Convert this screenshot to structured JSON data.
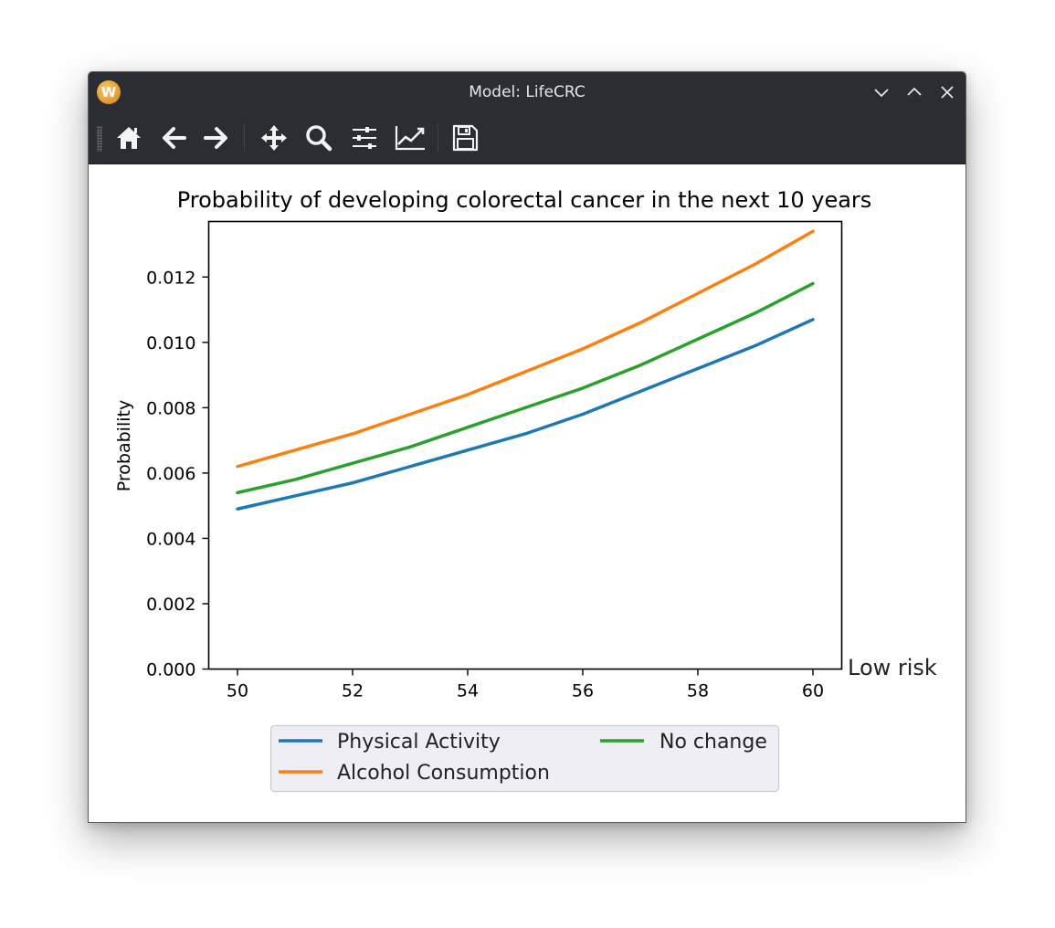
{
  "window": {
    "title": "Model: LifeCRC",
    "app_icon_letter": "W"
  },
  "toolbar": {
    "items": [
      {
        "name": "home-icon",
        "tooltip": "Home"
      },
      {
        "name": "back-arrow-icon",
        "tooltip": "Back"
      },
      {
        "name": "forward-arrow-icon",
        "tooltip": "Forward"
      },
      {
        "name": "pan-icon",
        "tooltip": "Pan"
      },
      {
        "name": "zoom-icon",
        "tooltip": "Zoom"
      },
      {
        "name": "subplots-icon",
        "tooltip": "Subplots"
      },
      {
        "name": "axes-edit-icon",
        "tooltip": "Customize"
      },
      {
        "name": "save-icon",
        "tooltip": "Save"
      }
    ]
  },
  "colors": {
    "titlebar": "#2a2e32",
    "icon": "#f2f3f4",
    "series_blue": "#1f77b4",
    "series_orange": "#ff7f0e",
    "series_green": "#2ca02c",
    "legend_bg": "#eeeef4"
  },
  "chart_data": {
    "type": "line",
    "title": "Probability of developing colorectal cancer in the next 10 years",
    "xlabel": "",
    "ylabel": "Probability",
    "side_label": "Low risk",
    "xlim": [
      49.5,
      60.5
    ],
    "ylim": [
      0.0,
      0.0137
    ],
    "xticks": [
      50,
      52,
      54,
      56,
      58,
      60
    ],
    "yticks": [
      0.0,
      0.002,
      0.004,
      0.006,
      0.008,
      0.01,
      0.012
    ],
    "ytick_labels": [
      "0.000",
      "0.002",
      "0.004",
      "0.006",
      "0.008",
      "0.010",
      "0.012"
    ],
    "x": [
      50,
      51,
      52,
      53,
      54,
      55,
      56,
      57,
      58,
      59,
      60
    ],
    "series": [
      {
        "name": "Physical Activity",
        "color": "#1f77b4",
        "values": [
          0.0049,
          0.0053,
          0.0057,
          0.0062,
          0.0067,
          0.0072,
          0.0078,
          0.0085,
          0.0092,
          0.0099,
          0.0107
        ]
      },
      {
        "name": "Alcohol Consumption",
        "color": "#ff7f0e",
        "values": [
          0.0062,
          0.0067,
          0.0072,
          0.0078,
          0.0084,
          0.0091,
          0.0098,
          0.0106,
          0.0115,
          0.0124,
          0.0134
        ]
      },
      {
        "name": "No change",
        "color": "#2ca02c",
        "values": [
          0.0054,
          0.0058,
          0.0063,
          0.0068,
          0.0074,
          0.008,
          0.0086,
          0.0093,
          0.0101,
          0.0109,
          0.0118
        ]
      }
    ],
    "legend": {
      "placement": "below-plot",
      "columns": 2,
      "order": [
        "Physical Activity",
        "Alcohol Consumption",
        "No change"
      ]
    },
    "grid": false
  }
}
